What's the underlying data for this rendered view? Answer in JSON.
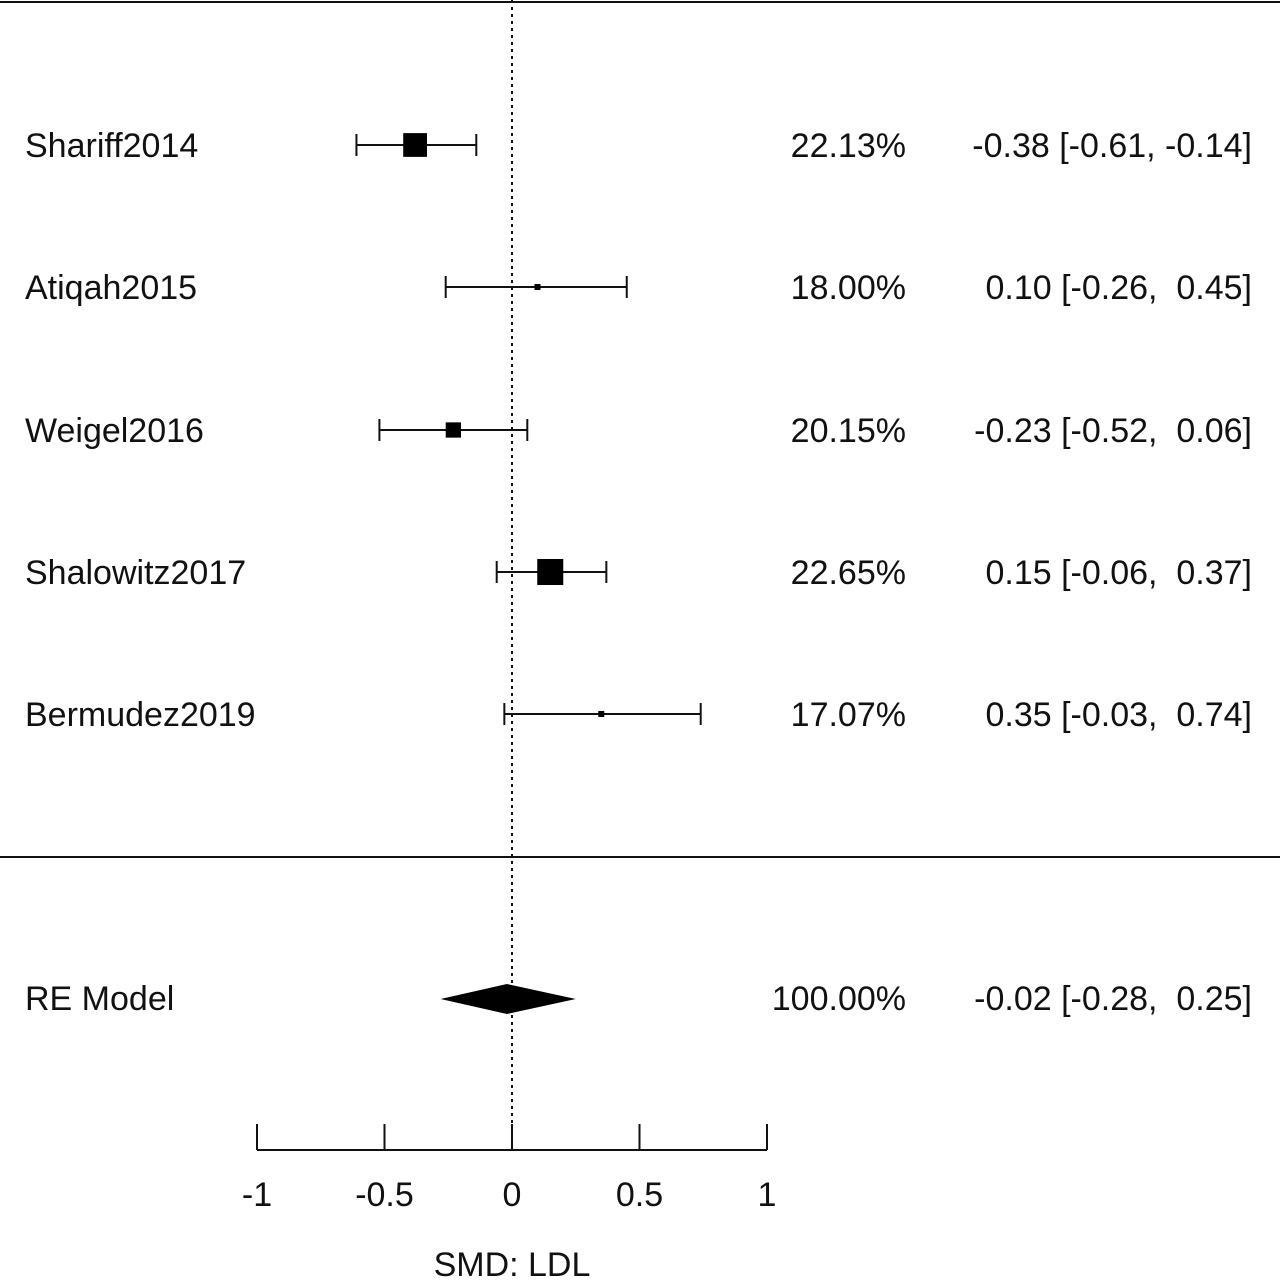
{
  "chart_data": {
    "type": "forest",
    "xlabel": "SMD: LDL",
    "xlim": [
      -1,
      1
    ],
    "ticks": [
      -1,
      -0.5,
      0,
      0.5,
      1
    ],
    "tick_labels": [
      "-1",
      "-0.5",
      "0",
      "0.5",
      "1"
    ],
    "reference_line": 0,
    "studies": [
      {
        "name": "Shariff2014",
        "estimate": -0.38,
        "ci_low": -0.61,
        "ci_high": -0.14,
        "weight": 22.13,
        "weight_label": "22.13%",
        "ci_label": "-0.38 [-0.61, -0.14]"
      },
      {
        "name": "Atiqah2015",
        "estimate": 0.1,
        "ci_low": -0.26,
        "ci_high": 0.45,
        "weight": 18.0,
        "weight_label": "18.00%",
        "ci_label": "0.10 [-0.26,  0.45]"
      },
      {
        "name": "Weigel2016",
        "estimate": -0.23,
        "ci_low": -0.52,
        "ci_high": 0.06,
        "weight": 20.15,
        "weight_label": "20.15%",
        "ci_label": "-0.23 [-0.52,  0.06]"
      },
      {
        "name": "Shalowitz2017",
        "estimate": 0.15,
        "ci_low": -0.06,
        "ci_high": 0.37,
        "weight": 22.65,
        "weight_label": "22.65%",
        "ci_label": "0.15 [-0.06,  0.37]"
      },
      {
        "name": "Bermudez2019",
        "estimate": 0.35,
        "ci_low": -0.03,
        "ci_high": 0.74,
        "weight": 17.07,
        "weight_label": "17.07%",
        "ci_label": "0.35 [-0.03,  0.74]"
      }
    ],
    "summary": {
      "name": "RE Model",
      "estimate": -0.02,
      "ci_low": -0.28,
      "ci_high": 0.25,
      "weight_label": "100.00%",
      "ci_label": "-0.02 [-0.28,  0.25]"
    }
  }
}
